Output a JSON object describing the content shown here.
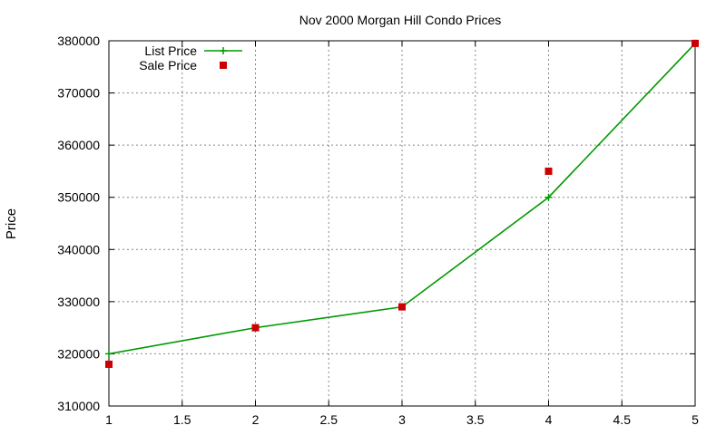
{
  "chart_data": {
    "type": "line",
    "title": "Nov 2000 Morgan Hill Condo Prices",
    "xlabel": "",
    "ylabel": "Price",
    "xlim": [
      1,
      5
    ],
    "ylim": [
      310000,
      380000
    ],
    "x_ticks": [
      1,
      1.5,
      2,
      2.5,
      3,
      3.5,
      4,
      4.5,
      5
    ],
    "x_tick_labels": [
      "1",
      "1.5",
      "2",
      "2.5",
      "3",
      "3.5",
      "4",
      "4.5",
      "5"
    ],
    "y_ticks": [
      310000,
      320000,
      330000,
      340000,
      350000,
      360000,
      370000,
      380000
    ],
    "y_tick_labels": [
      "310000",
      "320000",
      "330000",
      "340000",
      "350000",
      "360000",
      "370000",
      "380000"
    ],
    "grid": true,
    "legend_position": "top-left",
    "series": [
      {
        "name": "List Price",
        "style": "lines+points",
        "marker": "plus",
        "color": "#009900",
        "x": [
          1,
          2,
          3,
          4,
          5
        ],
        "y": [
          320000,
          325000,
          329000,
          350000,
          379500
        ]
      },
      {
        "name": "Sale Price",
        "style": "points",
        "marker": "square",
        "color": "#cc0000",
        "x": [
          1,
          2,
          3,
          4,
          5
        ],
        "y": [
          318000,
          325000,
          329000,
          355000,
          379500
        ]
      }
    ]
  }
}
